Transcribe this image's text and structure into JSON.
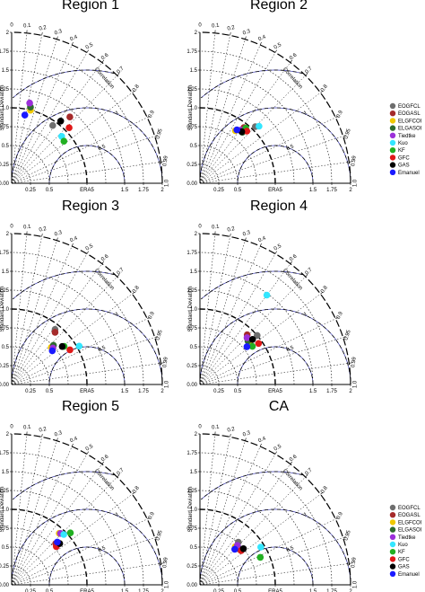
{
  "chart_data": {
    "type": "scatter",
    "subtype": "taylor-diagram",
    "radial_label": "Standard Deviation",
    "angular_label": "Correlation",
    "reference_label": "ERA5",
    "r_ticks": [
      "0.25",
      "0.5",
      "0.75",
      "1.0",
      "1.25",
      "1.5",
      "1.75",
      "2"
    ],
    "x_ticks": [
      "0.25",
      "0.5",
      "ERA5",
      "1.5",
      "1.75",
      "2"
    ],
    "corr_ticks": [
      "0",
      "0.1",
      "0.2",
      "0.3",
      "0.4",
      "0.5",
      "0.6",
      "0.7",
      "0.8",
      "0.9",
      "0.95",
      "0.99",
      "1.0"
    ],
    "rms_labels": [
      "0.5",
      "1",
      "1.5"
    ],
    "legend": [
      {
        "name": "EOGFCL",
        "color": "#6e6e6e"
      },
      {
        "name": "EOGASL",
        "color": "#a52a2a"
      },
      {
        "name": "ELGFCOI",
        "color": "#f0c800"
      },
      {
        "name": "ELGASOI",
        "color": "#2e6b2e"
      },
      {
        "name": "Tiedtke",
        "color": "#9b30d9"
      },
      {
        "name": "Kuo",
        "color": "#33e6ff"
      },
      {
        "name": "KF",
        "color": "#22b022"
      },
      {
        "name": "GFC",
        "color": "#e01818"
      },
      {
        "name": "GAS",
        "color": "#000000"
      },
      {
        "name": "Emanuel",
        "color": "#1a1aff"
      }
    ],
    "panels": [
      {
        "title": "Region 1",
        "show_legend": true,
        "points": [
          {
            "model": "EOGFCL",
            "sd": 0.94,
            "corr": 0.58
          },
          {
            "model": "EOGASL",
            "sd": 1.17,
            "corr": 0.66
          },
          {
            "model": "ELGFCOI",
            "sd": 1.0,
            "corr": 0.25
          },
          {
            "model": "ELGASOI",
            "sd": 1.04,
            "corr": 0.24
          },
          {
            "model": "Tiedtke",
            "sd": 1.09,
            "corr": 0.22
          },
          {
            "model": "Kuo",
            "sd": 0.91,
            "corr": 0.73
          },
          {
            "model": "KF",
            "sd": 0.89,
            "corr": 0.78
          },
          {
            "model": "GFC",
            "sd": 1.06,
            "corr": 0.72
          },
          {
            "model": "GAS",
            "sd": 1.05,
            "corr": 0.62
          },
          {
            "model": "Emanuel",
            "sd": 0.92,
            "corr": 0.19
          }
        ]
      },
      {
        "title": "Region 2",
        "show_legend": false,
        "points": [
          {
            "model": "EOGFCL",
            "sd": 1.05,
            "corr": 0.7
          },
          {
            "model": "EOGASL",
            "sd": 0.94,
            "corr": 0.62
          },
          {
            "model": "ELGFCOI",
            "sd": 0.84,
            "corr": 0.56
          },
          {
            "model": "ELGASOI",
            "sd": 0.88,
            "corr": 0.64
          },
          {
            "model": "Tiedtke",
            "sd": 0.89,
            "corr": 0.61
          },
          {
            "model": "Kuo",
            "sd": 1.09,
            "corr": 0.72
          },
          {
            "model": "KF",
            "sd": 0.95,
            "corr": 0.64
          },
          {
            "model": "GFC",
            "sd": 0.93,
            "corr": 0.67
          },
          {
            "model": "GAS",
            "sd": 0.88,
            "corr": 0.63
          },
          {
            "model": "Emanuel",
            "sd": 0.86,
            "corr": 0.57
          }
        ]
      },
      {
        "title": "Region 3",
        "show_legend": false,
        "points": [
          {
            "model": "EOGFCL",
            "sd": 0.93,
            "corr": 0.62
          },
          {
            "model": "EOGASL",
            "sd": 0.9,
            "corr": 0.64
          },
          {
            "model": "ELGFCOI",
            "sd": 0.72,
            "corr": 0.73
          },
          {
            "model": "ELGASOI",
            "sd": 0.76,
            "corr": 0.73
          },
          {
            "model": "Tiedtke",
            "sd": 0.73,
            "corr": 0.75
          },
          {
            "model": "Kuo",
            "sd": 1.03,
            "corr": 0.87
          },
          {
            "model": "KF",
            "sd": 0.86,
            "corr": 0.81
          },
          {
            "model": "GFC",
            "sd": 0.9,
            "corr": 0.86
          },
          {
            "model": "GAS",
            "sd": 0.84,
            "corr": 0.8
          },
          {
            "model": "Emanuel",
            "sd": 0.7,
            "corr": 0.77
          }
        ]
      },
      {
        "title": "Region 4",
        "show_legend": false,
        "points": [
          {
            "model": "EOGFCL",
            "sd": 1.0,
            "corr": 0.76
          },
          {
            "model": "EOGASL",
            "sd": 0.91,
            "corr": 0.69
          },
          {
            "model": "ELGFCOI",
            "sd": 0.85,
            "corr": 0.77
          },
          {
            "model": "ELGASOI",
            "sd": 0.86,
            "corr": 0.74
          },
          {
            "model": "Tiedtke",
            "sd": 0.88,
            "corr": 0.71
          },
          {
            "model": "Kuo",
            "sd": 1.48,
            "corr": 0.6
          },
          {
            "model": "KF",
            "sd": 0.86,
            "corr": 0.81
          },
          {
            "model": "GFC",
            "sd": 0.95,
            "corr": 0.82
          },
          {
            "model": "GAS",
            "sd": 0.92,
            "corr": 0.76
          },
          {
            "model": "Emanuel",
            "sd": 0.8,
            "corr": 0.78
          }
        ]
      },
      {
        "title": "Region 5",
        "show_legend": false,
        "points": [
          {
            "model": "EOGFCL",
            "sd": 0.83,
            "corr": 0.74
          },
          {
            "model": "EOGASL",
            "sd": 0.8,
            "corr": 0.73
          },
          {
            "model": "ELGFCOI",
            "sd": 0.93,
            "corr": 0.68
          },
          {
            "model": "ELGASOI",
            "sd": 0.83,
            "corr": 0.75
          },
          {
            "model": "Tiedtke",
            "sd": 0.94,
            "corr": 0.69
          },
          {
            "model": "Kuo",
            "sd": 0.96,
            "corr": 0.72
          },
          {
            "model": "KF",
            "sd": 1.04,
            "corr": 0.75
          },
          {
            "model": "GFC",
            "sd": 0.78,
            "corr": 0.76
          },
          {
            "model": "GAS",
            "sd": 0.84,
            "corr": 0.76
          },
          {
            "model": "Emanuel",
            "sd": 0.83,
            "corr": 0.73
          }
        ]
      },
      {
        "title": "CA",
        "show_legend": true,
        "points": [
          {
            "model": "EOGFCL",
            "sd": 0.76,
            "corr": 0.67
          },
          {
            "model": "EOGASL",
            "sd": 0.7,
            "corr": 0.73
          },
          {
            "model": "ELGFCOI",
            "sd": 0.69,
            "corr": 0.68
          },
          {
            "model": "ELGASOI",
            "sd": 0.71,
            "corr": 0.74
          },
          {
            "model": "Tiedtke",
            "sd": 0.72,
            "corr": 0.69
          },
          {
            "model": "Kuo",
            "sd": 0.95,
            "corr": 0.85
          },
          {
            "model": "KF",
            "sd": 0.88,
            "corr": 0.91
          },
          {
            "model": "GFC",
            "sd": 0.71,
            "corr": 0.77
          },
          {
            "model": "GAS",
            "sd": 0.75,
            "corr": 0.77
          },
          {
            "model": "Emanuel",
            "sd": 0.66,
            "corr": 0.7
          }
        ]
      }
    ]
  }
}
